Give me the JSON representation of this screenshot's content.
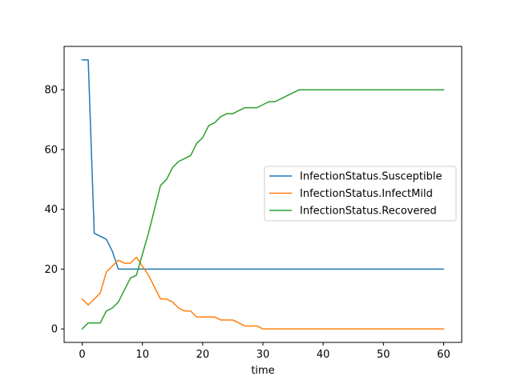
{
  "chart_data": {
    "type": "line",
    "title": "",
    "xlabel": "time",
    "ylabel": "",
    "xlim": [
      -3,
      63
    ],
    "ylim": [
      -4.5,
      94.5
    ],
    "xticks": [
      0,
      10,
      20,
      30,
      40,
      50,
      60
    ],
    "yticks": [
      0,
      20,
      40,
      60,
      80
    ],
    "grid": false,
    "legend_position": "center-right",
    "series": [
      {
        "name": "InfectionStatus.Susceptible",
        "color": "#1f77b4",
        "x": [
          0,
          1,
          2,
          3,
          4,
          5,
          6,
          7,
          8,
          9,
          10,
          11,
          12,
          13,
          14,
          15,
          16,
          17,
          18,
          19,
          20,
          21,
          22,
          23,
          24,
          25,
          26,
          27,
          28,
          29,
          30,
          31,
          32,
          33,
          34,
          35,
          36,
          37,
          38,
          39,
          40,
          41,
          42,
          43,
          44,
          45,
          46,
          47,
          48,
          49,
          50,
          51,
          52,
          53,
          54,
          55,
          56,
          57,
          58,
          59,
          60
        ],
        "y": [
          90,
          90,
          32,
          31,
          30,
          26,
          20,
          20,
          20,
          20,
          20,
          20,
          20,
          20,
          20,
          20,
          20,
          20,
          20,
          20,
          20,
          20,
          20,
          20,
          20,
          20,
          20,
          20,
          20,
          20,
          20,
          20,
          20,
          20,
          20,
          20,
          20,
          20,
          20,
          20,
          20,
          20,
          20,
          20,
          20,
          20,
          20,
          20,
          20,
          20,
          20,
          20,
          20,
          20,
          20,
          20,
          20,
          20,
          20,
          20,
          20
        ]
      },
      {
        "name": "InfectionStatus.InfectMild",
        "color": "#ff7f0e",
        "x": [
          0,
          1,
          2,
          3,
          4,
          5,
          6,
          7,
          8,
          9,
          10,
          11,
          12,
          13,
          14,
          15,
          16,
          17,
          18,
          19,
          20,
          21,
          22,
          23,
          24,
          25,
          26,
          27,
          28,
          29,
          30,
          31,
          32,
          33,
          34,
          35,
          36,
          37,
          38,
          39,
          40,
          41,
          42,
          43,
          44,
          45,
          46,
          47,
          48,
          49,
          50,
          51,
          52,
          53,
          54,
          55,
          56,
          57,
          58,
          59,
          60
        ],
        "y": [
          10,
          8,
          10,
          12,
          19,
          21,
          23,
          22,
          22,
          24,
          21,
          18,
          14,
          10,
          10,
          9,
          7,
          6,
          6,
          4,
          4,
          4,
          4,
          3,
          3,
          3,
          2,
          1,
          1,
          1,
          0,
          0,
          0,
          0,
          0,
          0,
          0,
          0,
          0,
          0,
          0,
          0,
          0,
          0,
          0,
          0,
          0,
          0,
          0,
          0,
          0,
          0,
          0,
          0,
          0,
          0,
          0,
          0,
          0,
          0,
          0
        ]
      },
      {
        "name": "InfectionStatus.Recovered",
        "color": "#2ca02c",
        "x": [
          0,
          1,
          2,
          3,
          4,
          5,
          6,
          7,
          8,
          9,
          10,
          11,
          12,
          13,
          14,
          15,
          16,
          17,
          18,
          19,
          20,
          21,
          22,
          23,
          24,
          25,
          26,
          27,
          28,
          29,
          30,
          31,
          32,
          33,
          34,
          35,
          36,
          37,
          38,
          39,
          40,
          41,
          42,
          43,
          44,
          45,
          46,
          47,
          48,
          49,
          50,
          51,
          52,
          53,
          54,
          55,
          56,
          57,
          58,
          59,
          60
        ],
        "y": [
          0,
          2,
          2,
          2,
          6,
          7,
          9,
          13,
          17,
          18,
          25,
          32,
          40,
          48,
          50,
          54,
          56,
          57,
          58,
          62,
          64,
          68,
          69,
          71,
          72,
          72,
          73,
          74,
          74,
          74,
          75,
          76,
          76,
          77,
          78,
          79,
          80,
          80,
          80,
          80,
          80,
          80,
          80,
          80,
          80,
          80,
          80,
          80,
          80,
          80,
          80,
          80,
          80,
          80,
          80,
          80,
          80,
          80,
          80,
          80,
          80
        ]
      }
    ]
  }
}
